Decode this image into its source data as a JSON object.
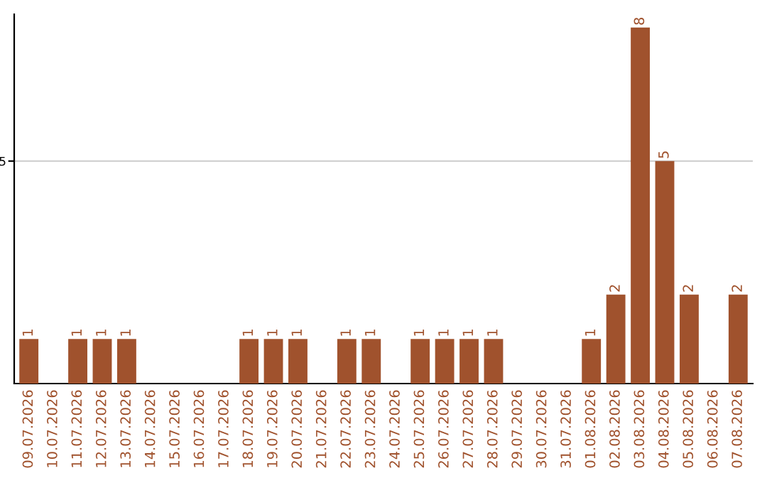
{
  "chart_data": {
    "type": "bar",
    "categories": [
      "09.07.2026",
      "10.07.2026",
      "11.07.2026",
      "12.07.2026",
      "13.07.2026",
      "14.07.2026",
      "15.07.2026",
      "16.07.2026",
      "17.07.2026",
      "18.07.2026",
      "19.07.2026",
      "20.07.2026",
      "21.07.2026",
      "22.07.2026",
      "23.07.2026",
      "24.07.2026",
      "25.07.2026",
      "26.07.2026",
      "27.07.2026",
      "28.07.2026",
      "29.07.2026",
      "30.07.2026",
      "31.07.2026",
      "01.08.2026",
      "02.08.2026",
      "03.08.2026",
      "04.08.2026",
      "05.08.2026",
      "06.08.2026",
      "07.08.2026"
    ],
    "values": [
      1,
      0,
      1,
      1,
      1,
      0,
      0,
      0,
      0,
      1,
      1,
      1,
      0,
      1,
      1,
      0,
      1,
      1,
      1,
      1,
      0,
      0,
      0,
      1,
      2,
      8,
      5,
      2,
      0,
      2
    ],
    "value_labels": [
      "1",
      null,
      "1",
      "1",
      "1",
      null,
      null,
      null,
      null,
      "1",
      "1",
      "1",
      null,
      "1",
      "1",
      null,
      "1",
      "1",
      "1",
      "1",
      null,
      null,
      null,
      "1",
      "2",
      "8",
      "5",
      "2",
      null,
      "2"
    ],
    "color": "#a0522d",
    "ylim": [
      0,
      8.3
    ],
    "yticks": [
      5
    ],
    "grid": "y"
  }
}
